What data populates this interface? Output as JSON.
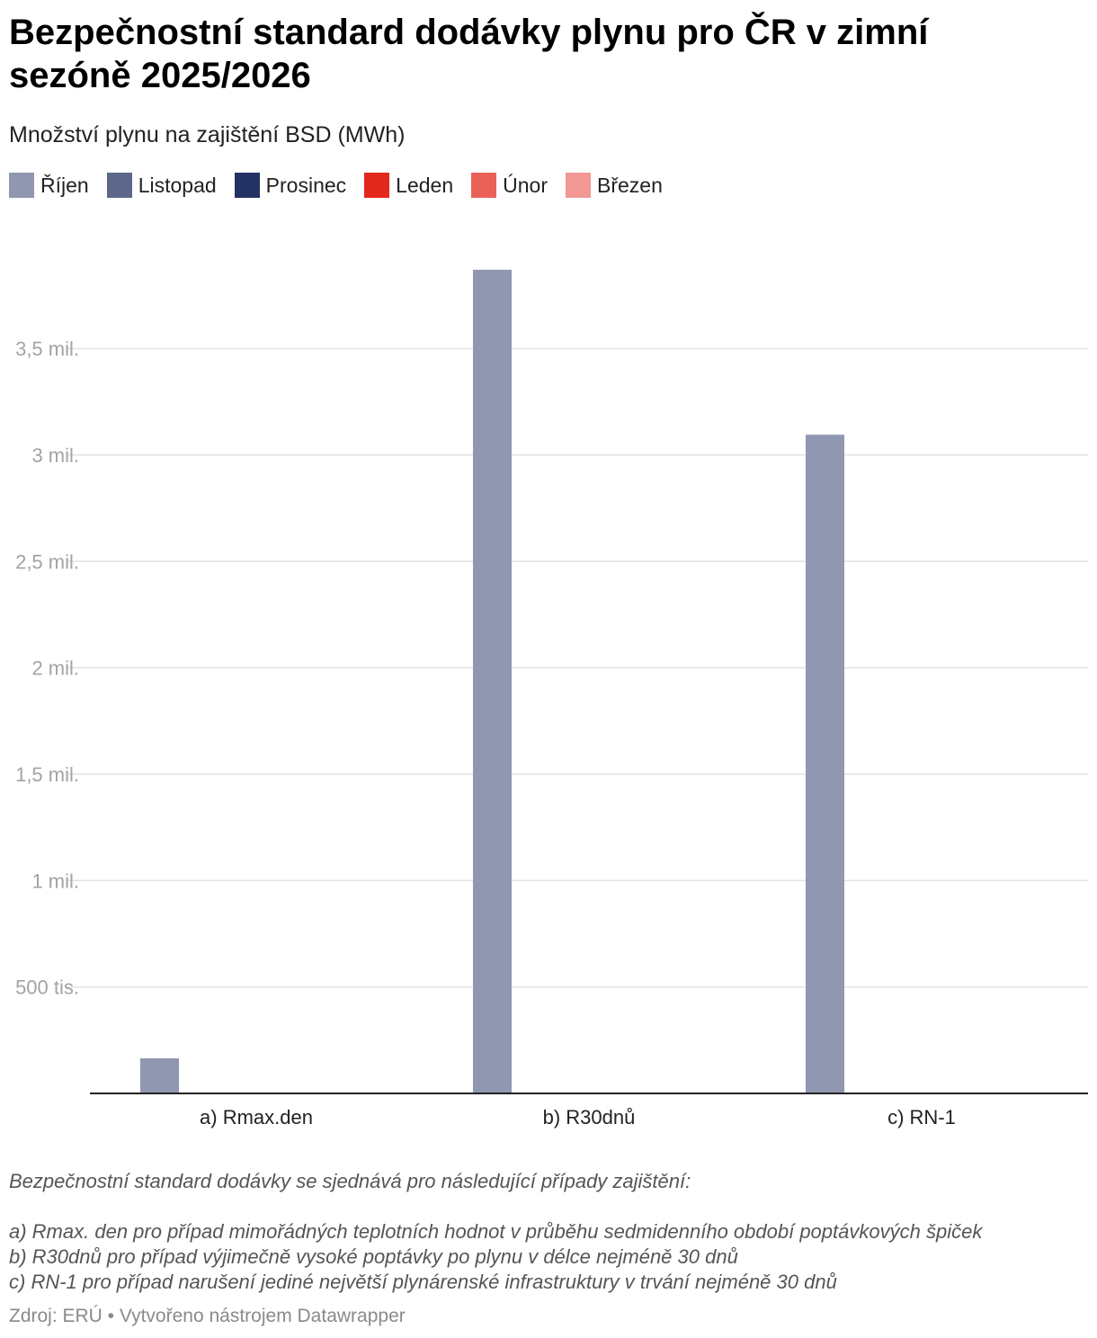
{
  "title": "Bezpečnostní standard dodávky plynu pro ČR v zimní sezóně 2025/2026",
  "subtitle": "Množství plynu na zajištění BSD (MWh)",
  "legend": [
    {
      "label": "Říjen",
      "color": "#9097b0"
    },
    {
      "label": "Listopad",
      "color": "#5d6789"
    },
    {
      "label": "Prosinec",
      "color": "#243164"
    },
    {
      "label": "Leden",
      "color": "#e3281d"
    },
    {
      "label": "Únor",
      "color": "#ea6157"
    },
    {
      "label": "Březen",
      "color": "#f29892"
    }
  ],
  "chart_data": {
    "type": "bar",
    "categories": [
      "a) Rmax.den",
      "b) R30dnů",
      "c) RN-1"
    ],
    "series": [
      {
        "name": "Říjen",
        "values": [
          165000,
          3870000,
          3095000
        ]
      },
      {
        "name": "Listopad",
        "values": [
          null,
          null,
          null
        ]
      },
      {
        "name": "Prosinec",
        "values": [
          null,
          null,
          null
        ]
      },
      {
        "name": "Leden",
        "values": [
          null,
          null,
          null
        ]
      },
      {
        "name": "Únor",
        "values": [
          null,
          null,
          null
        ]
      },
      {
        "name": "Březen",
        "values": [
          null,
          null,
          null
        ]
      }
    ],
    "yticks": [
      {
        "value": 500000,
        "label": "500 tis."
      },
      {
        "value": 1000000,
        "label": "1 mil."
      },
      {
        "value": 1500000,
        "label": "1,5 mil."
      },
      {
        "value": 2000000,
        "label": "2 mil."
      },
      {
        "value": 2500000,
        "label": "2,5 mil."
      },
      {
        "value": 3000000,
        "label": "3 mil."
      },
      {
        "value": 3500000,
        "label": "3,5 mil."
      }
    ],
    "ylim": [
      0,
      3870000
    ],
    "grid": true,
    "legend_position": "top-left"
  },
  "notes": {
    "intro": "Bezpečnostní standard dodávky se sjednává pro následující případy zajištění:",
    "a": "a) Rmax. den pro případ mimořádných teplotních hodnot v průběhu sedmidenního období poptávkových špiček",
    "b": "b) R30dnů pro případ výjimečně vysoké poptávky po plynu v délce nejméně 30 dnů",
    "c": "c) RN-1 pro případ narušení jediné největší plynárenské infrastruktury v trvání nejméně 30 dnů"
  },
  "footer": "Zdroj: ERÚ • Vytvořeno nástrojem Datawrapper"
}
